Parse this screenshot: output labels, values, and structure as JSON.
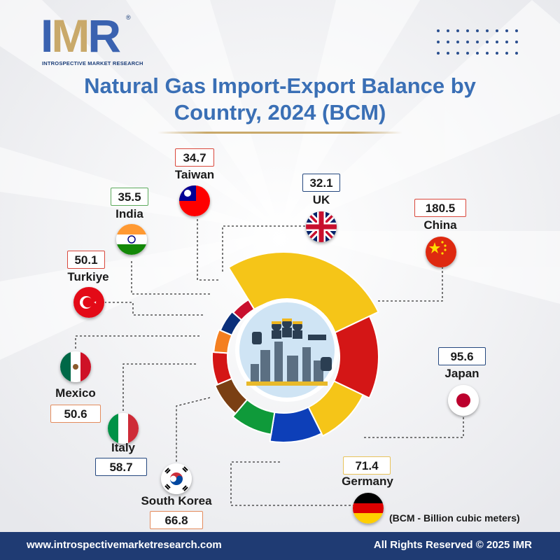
{
  "brand": {
    "logo_letters": [
      "I",
      "M",
      "R"
    ],
    "logo_subtitle": "INTROSPECTIVE MARKET RESEARCH",
    "reg_mark": "®"
  },
  "title_line1": "Natural Gas Import-Export Balance by",
  "title_line2": "Country, 2024 (BCM)",
  "note": "(BCM - Billion cubic meters)",
  "footer": {
    "url": "www.introspectivemarketresearch.com",
    "rights": "All Rights Reserved © 2025 IMR"
  },
  "chart_data": {
    "type": "pie",
    "variant": "donut",
    "unit": "BCM",
    "slices": [
      {
        "label": "China",
        "value": 180.5,
        "color": "#f5c518"
      },
      {
        "label": "Japan",
        "value": 95.6,
        "color": "#d41616"
      },
      {
        "label": "Germany",
        "value": 71.4,
        "color": "#f5c518"
      },
      {
        "label": "South Korea",
        "value": 66.8,
        "color": "#0d3fb8"
      },
      {
        "label": "Italy",
        "value": 58.7,
        "color": "#0f9a3a"
      },
      {
        "label": "Mexico",
        "value": 50.6,
        "color": "#7a3f13"
      },
      {
        "label": "Turkiye",
        "value": 50.1,
        "color": "#d41616"
      },
      {
        "label": "India",
        "value": 35.5,
        "color": "#f47f20"
      },
      {
        "label": "Taiwan",
        "value": 34.7,
        "color": "#0a2f7a"
      },
      {
        "label": "UK",
        "value": 32.1,
        "color": "#c8102e"
      }
    ]
  },
  "labels": {
    "taiwan": {
      "name": "Taiwan",
      "value": "34.7"
    },
    "uk": {
      "name": "UK",
      "value": "32.1"
    },
    "india": {
      "name": "India",
      "value": "35.5"
    },
    "china": {
      "name": "China",
      "value": "180.5"
    },
    "turkiye": {
      "name": "Turkiye",
      "value": "50.1"
    },
    "mexico": {
      "name": "Mexico",
      "value": "50.6"
    },
    "japan": {
      "name": "Japan",
      "value": "95.6"
    },
    "italy": {
      "name": "Italy",
      "value": "58.7"
    },
    "germany": {
      "name": "Germany",
      "value": "71.4"
    },
    "south_korea": {
      "name": "South Korea",
      "value": "66.8"
    }
  }
}
